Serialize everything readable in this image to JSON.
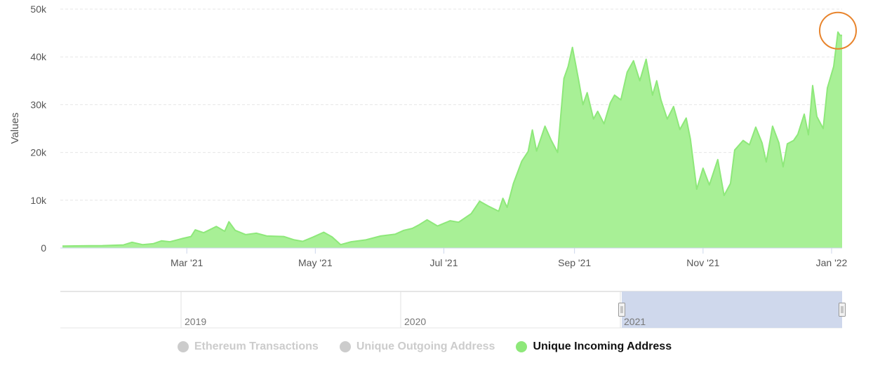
{
  "chart_data": {
    "type": "area",
    "ylabel": "Values",
    "ylim": [
      0,
      50000
    ],
    "y_ticks": [
      {
        "value": 0,
        "label": "0"
      },
      {
        "value": 10000,
        "label": "10k"
      },
      {
        "value": 20000,
        "label": "20k"
      },
      {
        "value": 30000,
        "label": "30k"
      },
      {
        "value": 40000,
        "label": "40k"
      },
      {
        "value": 50000,
        "label": "50k"
      }
    ],
    "xlim": [
      "2020-12-31",
      "2022-01-06"
    ],
    "x_ticks": [
      {
        "date": "2021-03-01",
        "label": "Mar '21"
      },
      {
        "date": "2021-05-01",
        "label": "May '21"
      },
      {
        "date": "2021-07-01",
        "label": "Jul '21"
      },
      {
        "date": "2021-09-01",
        "label": "Sep '21"
      },
      {
        "date": "2021-11-01",
        "label": "Nov '21"
      },
      {
        "date": "2022-01-01",
        "label": "Jan '22"
      }
    ],
    "grid": true,
    "highlight_point": {
      "date": "2022-01-04",
      "value": 45200,
      "color": "#e8842c"
    },
    "series": [
      {
        "name": "Unique Incoming Address",
        "color": "#8ee87a",
        "fill": "#a8f096",
        "points": [
          [
            "2021-01-01",
            400
          ],
          [
            "2021-01-10",
            450
          ],
          [
            "2021-01-20",
            500
          ],
          [
            "2021-01-30",
            650
          ],
          [
            "2021-02-03",
            1200
          ],
          [
            "2021-02-08",
            700
          ],
          [
            "2021-02-13",
            900
          ],
          [
            "2021-02-17",
            1500
          ],
          [
            "2021-02-21",
            1300
          ],
          [
            "2021-02-27",
            2000
          ],
          [
            "2021-03-03",
            2400
          ],
          [
            "2021-03-05",
            3800
          ],
          [
            "2021-03-09",
            3200
          ],
          [
            "2021-03-15",
            4500
          ],
          [
            "2021-03-19",
            3500
          ],
          [
            "2021-03-21",
            5500
          ],
          [
            "2021-03-24",
            3700
          ],
          [
            "2021-03-29",
            2800
          ],
          [
            "2021-04-03",
            3100
          ],
          [
            "2021-04-08",
            2500
          ],
          [
            "2021-04-16",
            2400
          ],
          [
            "2021-04-21",
            1700
          ],
          [
            "2021-04-25",
            1400
          ],
          [
            "2021-04-30",
            2300
          ],
          [
            "2021-05-05",
            3300
          ],
          [
            "2021-05-09",
            2300
          ],
          [
            "2021-05-13",
            700
          ],
          [
            "2021-05-18",
            1300
          ],
          [
            "2021-05-25",
            1700
          ],
          [
            "2021-06-01",
            2500
          ],
          [
            "2021-06-08",
            2900
          ],
          [
            "2021-06-12",
            3700
          ],
          [
            "2021-06-16",
            4100
          ],
          [
            "2021-06-19",
            4800
          ],
          [
            "2021-06-23",
            5900
          ],
          [
            "2021-06-28",
            4600
          ],
          [
            "2021-07-04",
            5700
          ],
          [
            "2021-07-08",
            5400
          ],
          [
            "2021-07-14",
            7200
          ],
          [
            "2021-07-18",
            9800
          ],
          [
            "2021-07-22",
            8800
          ],
          [
            "2021-07-27",
            7700
          ],
          [
            "2021-07-29",
            10400
          ],
          [
            "2021-07-31",
            8500
          ],
          [
            "2021-08-03",
            13500
          ],
          [
            "2021-08-07",
            18200
          ],
          [
            "2021-08-10",
            20200
          ],
          [
            "2021-08-12",
            24700
          ],
          [
            "2021-08-14",
            20300
          ],
          [
            "2021-08-18",
            25500
          ],
          [
            "2021-08-21",
            22500
          ],
          [
            "2021-08-24",
            20000
          ],
          [
            "2021-08-27",
            35500
          ],
          [
            "2021-08-29",
            38000
          ],
          [
            "2021-08-31",
            42000
          ],
          [
            "2021-09-03",
            35000
          ],
          [
            "2021-09-05",
            30000
          ],
          [
            "2021-09-07",
            32500
          ],
          [
            "2021-09-10",
            27000
          ],
          [
            "2021-09-12",
            28600
          ],
          [
            "2021-09-15",
            26000
          ],
          [
            "2021-09-18",
            30400
          ],
          [
            "2021-09-20",
            32000
          ],
          [
            "2021-09-23",
            31000
          ],
          [
            "2021-09-26",
            36800
          ],
          [
            "2021-09-29",
            39200
          ],
          [
            "2021-10-02",
            35000
          ],
          [
            "2021-10-05",
            39500
          ],
          [
            "2021-10-08",
            32000
          ],
          [
            "2021-10-10",
            35000
          ],
          [
            "2021-10-12",
            31000
          ],
          [
            "2021-10-15",
            27000
          ],
          [
            "2021-10-18",
            29600
          ],
          [
            "2021-10-21",
            24800
          ],
          [
            "2021-10-24",
            27200
          ],
          [
            "2021-10-26",
            22800
          ],
          [
            "2021-10-29",
            12300
          ],
          [
            "2021-11-01",
            16700
          ],
          [
            "2021-11-04",
            13200
          ],
          [
            "2021-11-08",
            18500
          ],
          [
            "2021-11-11",
            11000
          ],
          [
            "2021-11-14",
            13500
          ],
          [
            "2021-11-16",
            20500
          ],
          [
            "2021-11-20",
            22500
          ],
          [
            "2021-11-23",
            21600
          ],
          [
            "2021-11-26",
            25300
          ],
          [
            "2021-11-29",
            22000
          ],
          [
            "2021-12-01",
            18000
          ],
          [
            "2021-12-04",
            25500
          ],
          [
            "2021-12-07",
            22000
          ],
          [
            "2021-12-09",
            17000
          ],
          [
            "2021-12-11",
            21800
          ],
          [
            "2021-12-14",
            22500
          ],
          [
            "2021-12-16",
            23800
          ],
          [
            "2021-12-19",
            28000
          ],
          [
            "2021-12-21",
            23700
          ],
          [
            "2021-12-23",
            34000
          ],
          [
            "2021-12-25",
            27500
          ],
          [
            "2021-12-28",
            25000
          ],
          [
            "2021-12-30",
            33500
          ],
          [
            "2022-01-02",
            38000
          ],
          [
            "2022-01-04",
            45200
          ],
          [
            "2022-01-05",
            44500
          ],
          [
            "2022-01-06",
            44500
          ]
        ]
      }
    ]
  },
  "navigator": {
    "labels": [
      "2019",
      "2020",
      "2021"
    ]
  },
  "legend": {
    "items": [
      {
        "label": "Ethereum Transactions",
        "active": false,
        "color": "#cccccc"
      },
      {
        "label": "Unique Outgoing Address",
        "active": false,
        "color": "#cccccc"
      },
      {
        "label": "Unique Incoming Address",
        "active": true,
        "color": "#8ee87a"
      }
    ]
  }
}
